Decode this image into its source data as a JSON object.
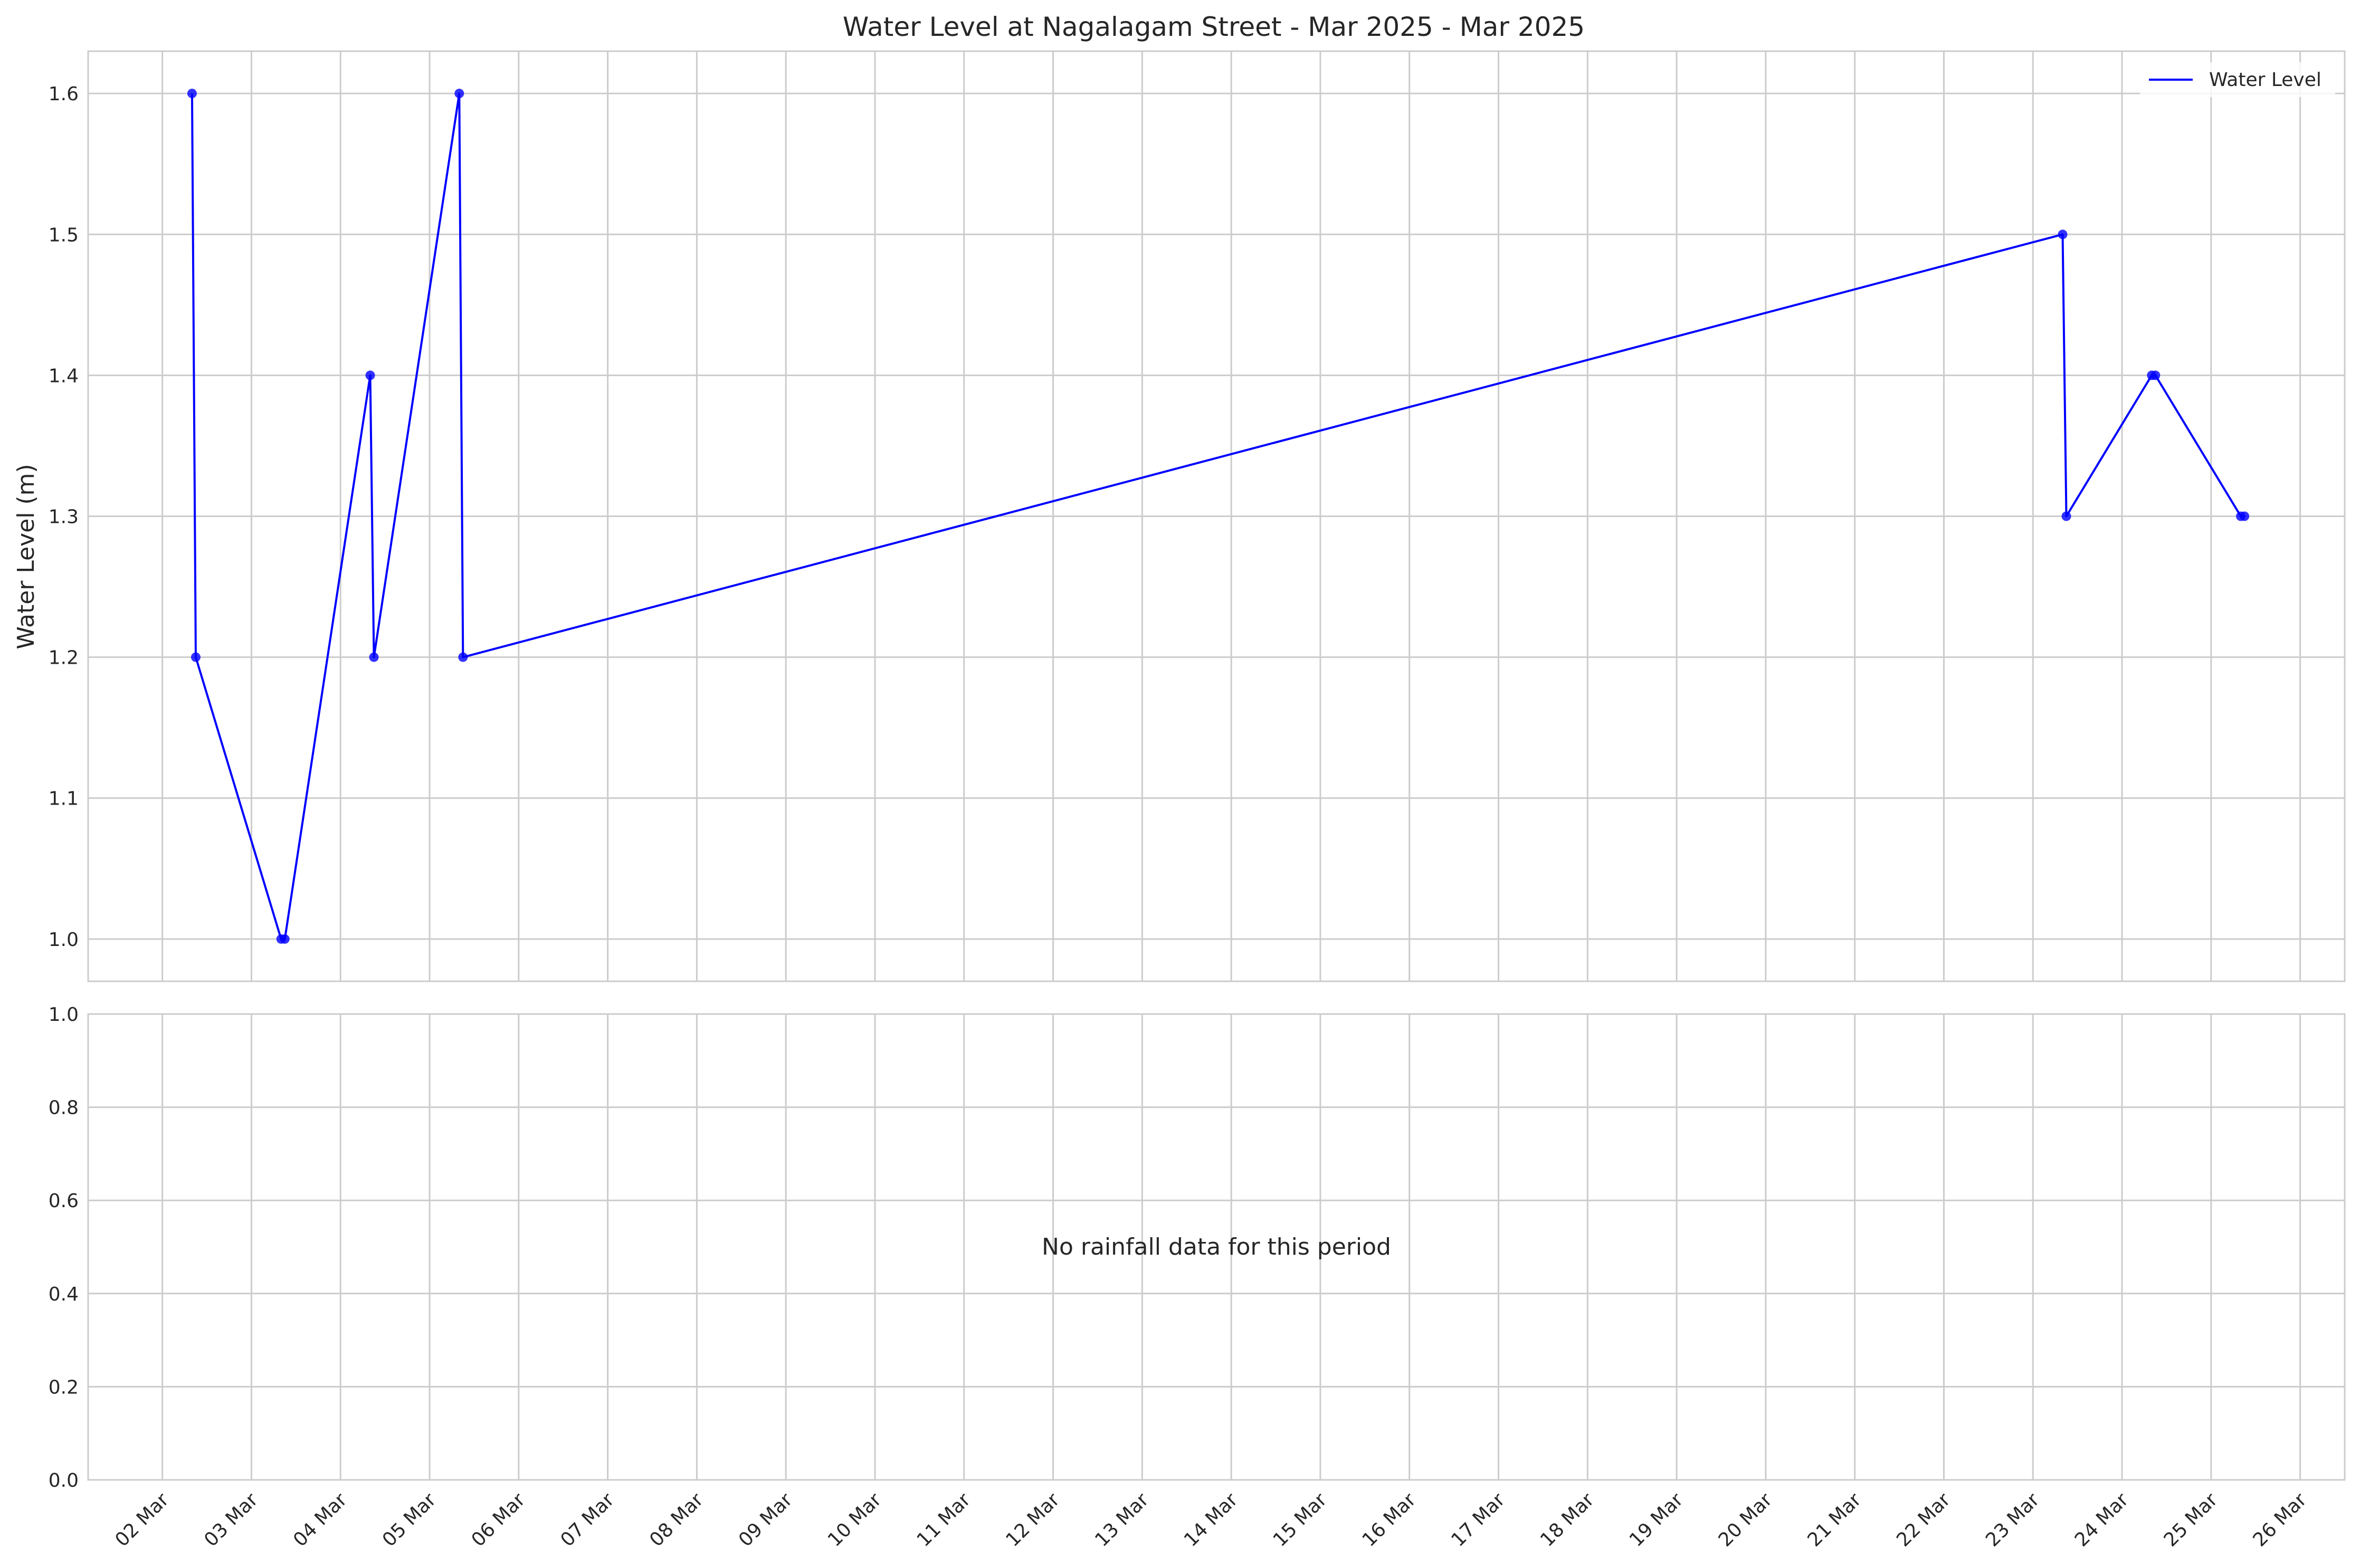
{
  "chart_data": [
    {
      "type": "line",
      "title": "Water Level at Nagalagam Street - Mar 2025 - Mar 2025",
      "xlabel": "",
      "ylabel": "Water Level (m)",
      "ylim": [
        0.97,
        1.63
      ],
      "yticks": [
        1.0,
        1.1,
        1.2,
        1.3,
        1.4,
        1.5,
        1.6
      ],
      "ytick_labels": [
        "1.0",
        "1.1",
        "1.2",
        "1.3",
        "1.4",
        "1.5",
        "1.6"
      ],
      "grid": true,
      "legend": {
        "position": "top-right",
        "entries": [
          "Water Level"
        ]
      },
      "series": [
        {
          "name": "Water Level",
          "color": "#0000ff",
          "marker": "circle",
          "points": [
            {
              "x": "2025-03-02 08:00",
              "y": 1.6
            },
            {
              "x": "2025-03-02 09:00",
              "y": 1.2
            },
            {
              "x": "2025-03-03 08:00",
              "y": 1.0
            },
            {
              "x": "2025-03-03 09:00",
              "y": 1.0
            },
            {
              "x": "2025-03-04 08:00",
              "y": 1.4
            },
            {
              "x": "2025-03-04 09:00",
              "y": 1.2
            },
            {
              "x": "2025-03-05 08:00",
              "y": 1.6
            },
            {
              "x": "2025-03-05 09:00",
              "y": 1.2
            },
            {
              "x": "2025-03-23 08:00",
              "y": 1.5
            },
            {
              "x": "2025-03-23 09:00",
              "y": 1.3
            },
            {
              "x": "2025-03-24 08:00",
              "y": 1.4
            },
            {
              "x": "2025-03-24 09:00",
              "y": 1.4
            },
            {
              "x": "2025-03-25 08:00",
              "y": 1.3
            },
            {
              "x": "2025-03-25 09:00",
              "y": 1.3
            }
          ]
        }
      ]
    },
    {
      "type": "bar",
      "title": "",
      "xlabel": "",
      "ylabel": "",
      "ylim": [
        0.0,
        1.0
      ],
      "yticks": [
        0.0,
        0.2,
        0.4,
        0.6,
        0.8,
        1.0
      ],
      "ytick_labels": [
        "0.0",
        "0.2",
        "0.4",
        "0.6",
        "0.8",
        "1.0"
      ],
      "grid": true,
      "annotation": "No rainfall data for this period",
      "series": []
    }
  ],
  "x_axis": {
    "range": [
      "2025-03-01 04:00",
      "2025-03-26 12:00"
    ],
    "ticks": [
      {
        "date": "2025-03-02",
        "label": "02 Mar"
      },
      {
        "date": "2025-03-03",
        "label": "03 Mar"
      },
      {
        "date": "2025-03-04",
        "label": "04 Mar"
      },
      {
        "date": "2025-03-05",
        "label": "05 Mar"
      },
      {
        "date": "2025-03-06",
        "label": "06 Mar"
      },
      {
        "date": "2025-03-07",
        "label": "07 Mar"
      },
      {
        "date": "2025-03-08",
        "label": "08 Mar"
      },
      {
        "date": "2025-03-09",
        "label": "09 Mar"
      },
      {
        "date": "2025-03-10",
        "label": "10 Mar"
      },
      {
        "date": "2025-03-11",
        "label": "11 Mar"
      },
      {
        "date": "2025-03-12",
        "label": "12 Mar"
      },
      {
        "date": "2025-03-13",
        "label": "13 Mar"
      },
      {
        "date": "2025-03-14",
        "label": "14 Mar"
      },
      {
        "date": "2025-03-15",
        "label": "15 Mar"
      },
      {
        "date": "2025-03-16",
        "label": "16 Mar"
      },
      {
        "date": "2025-03-17",
        "label": "17 Mar"
      },
      {
        "date": "2025-03-18",
        "label": "18 Mar"
      },
      {
        "date": "2025-03-19",
        "label": "19 Mar"
      },
      {
        "date": "2025-03-20",
        "label": "20 Mar"
      },
      {
        "date": "2025-03-21",
        "label": "21 Mar"
      },
      {
        "date": "2025-03-22",
        "label": "22 Mar"
      },
      {
        "date": "2025-03-23",
        "label": "23 Mar"
      },
      {
        "date": "2025-03-24",
        "label": "24 Mar"
      },
      {
        "date": "2025-03-25",
        "label": "25 Mar"
      },
      {
        "date": "2025-03-26",
        "label": "26 Mar"
      }
    ]
  }
}
